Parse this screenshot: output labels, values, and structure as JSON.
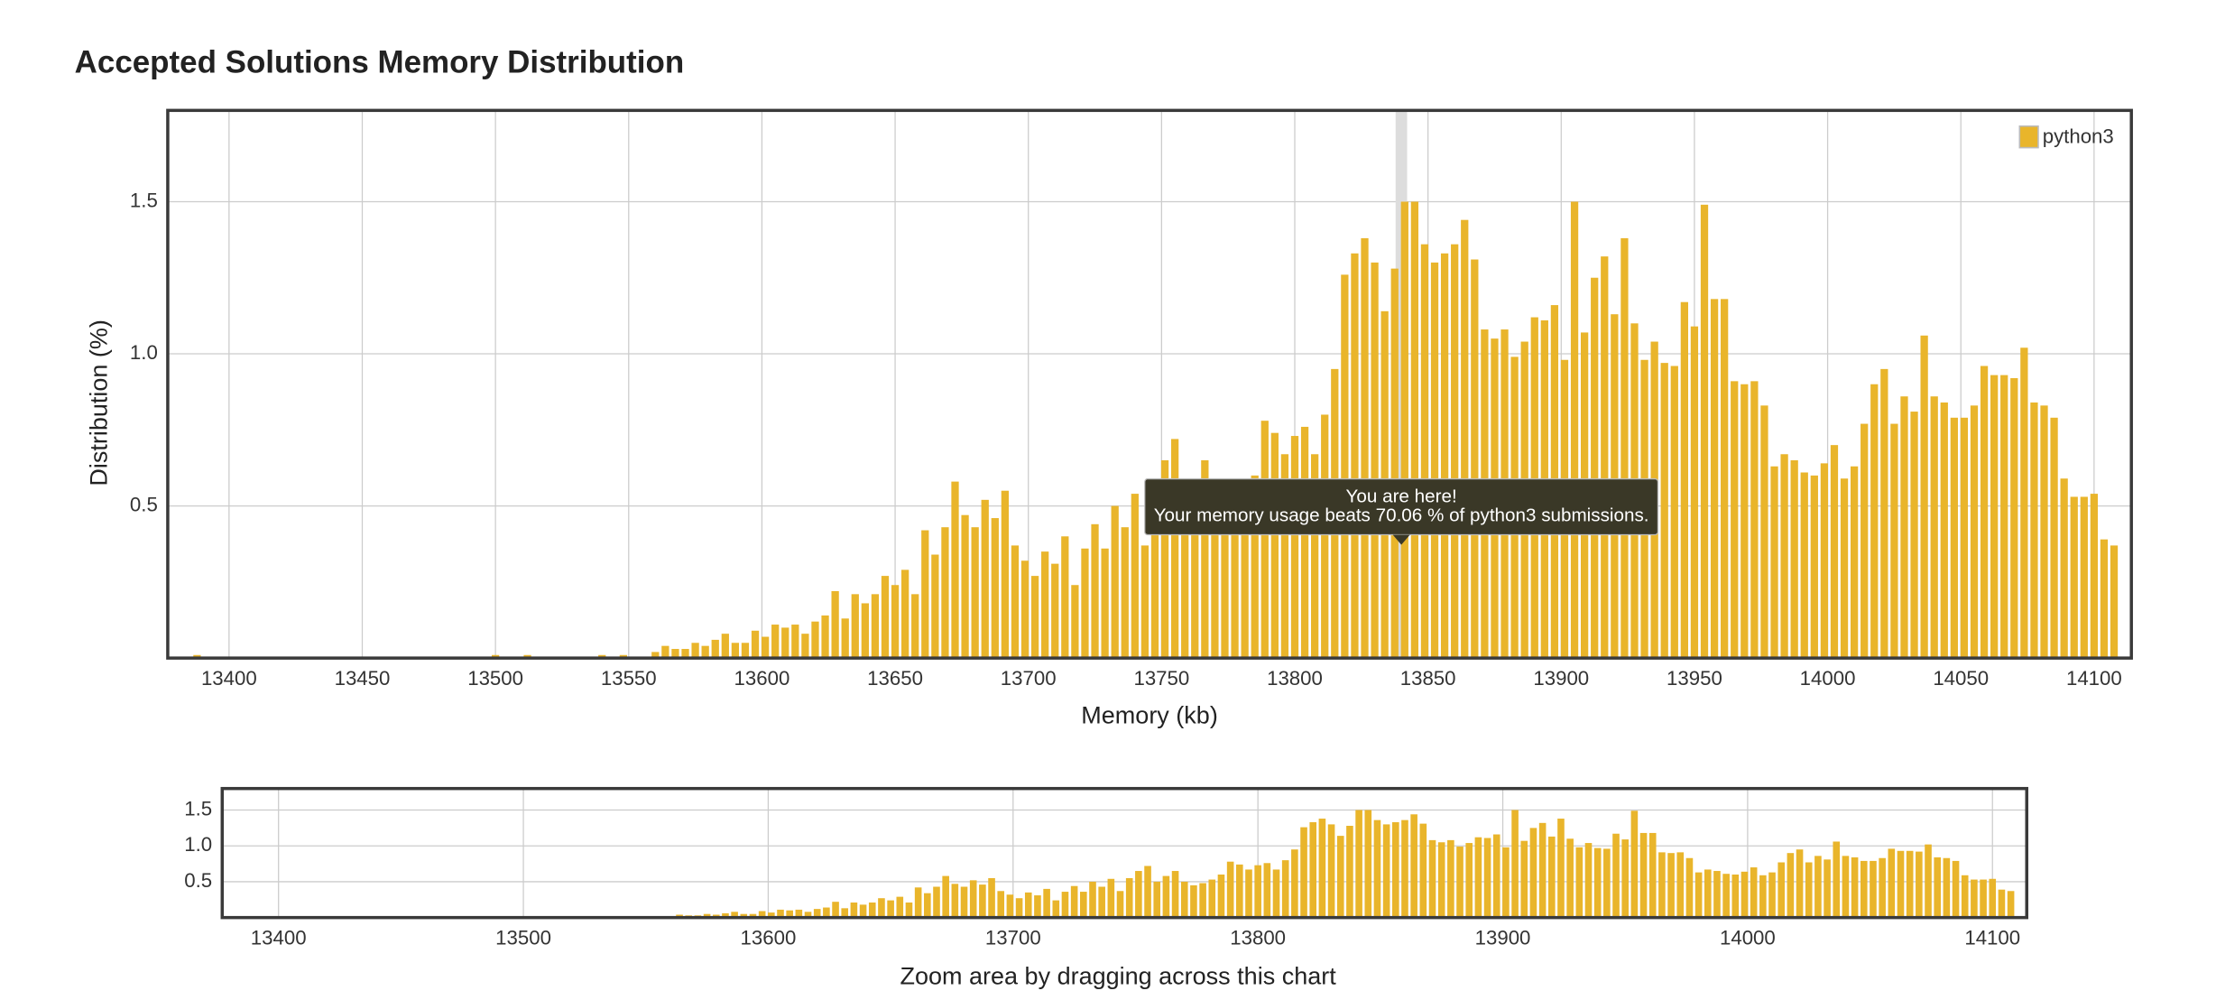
{
  "chart_data": [
    {
      "type": "bar",
      "title": "Accepted Solutions Memory Distribution",
      "xlabel": "Memory (kb)",
      "ylabel": "Distribution (%)",
      "legend": "top-right",
      "grid": true,
      "xlim": [
        13377,
        14114
      ],
      "ylim": [
        0,
        1.8
      ],
      "xticks": [
        13400,
        13450,
        13500,
        13550,
        13600,
        13650,
        13700,
        13750,
        13800,
        13850,
        13900,
        13950,
        14000,
        14050,
        14100
      ],
      "yticks": [
        0.5,
        {
          "value": 1,
          "label": "1.0"
        },
        1.5
      ],
      "highlight_x": 13840,
      "tooltip": {
        "title": "You are here!",
        "text": "Your memory usage beats 70.06 % of python3 submissions."
      },
      "x": [
        13388,
        13500,
        13512,
        13540,
        13548,
        13560,
        13563.75,
        13567.5,
        13571.25,
        13575,
        13578.75,
        13582.5,
        13586.25,
        13590,
        13593.75,
        13597.5,
        13601.25,
        13605,
        13608.75,
        13612.5,
        13616.25,
        13620,
        13623.75,
        13627.5,
        13631.25,
        13635,
        13638.75,
        13642.5,
        13646.25,
        13650,
        13653.75,
        13657.5,
        13661.25,
        13665,
        13668.75,
        13672.5,
        13676.25,
        13680,
        13683.75,
        13687.5,
        13691.25,
        13695,
        13698.75,
        13702.5,
        13706.25,
        13710,
        13713.75,
        13717.5,
        13721.25,
        13725,
        13728.75,
        13732.5,
        13736.25,
        13740,
        13743.75,
        13747.5,
        13751.25,
        13755,
        13758.75,
        13762.5,
        13766.25,
        13770,
        13773.75,
        13777.5,
        13781.25,
        13785,
        13788.75,
        13792.5,
        13796.25,
        13800,
        13803.75,
        13807.5,
        13811.25,
        13815,
        13818.75,
        13822.5,
        13826.25,
        13830,
        13833.75,
        13837.5,
        13841.25,
        13845,
        13848.75,
        13852.5,
        13856.25,
        13860,
        13863.75,
        13867.5,
        13871.25,
        13875,
        13878.75,
        13882.5,
        13886.25,
        13890,
        13893.75,
        13897.5,
        13901.25,
        13905,
        13908.75,
        13912.5,
        13916.25,
        13920,
        13923.75,
        13927.5,
        13931.25,
        13935,
        13938.75,
        13942.5,
        13946.25,
        13950,
        13953.75,
        13957.5,
        13961.25,
        13965,
        13968.75,
        13972.5,
        13976.25,
        13980,
        13983.75,
        13987.5,
        13991.25,
        13995,
        13998.75,
        14002.5,
        14006.25,
        14010,
        14013.75,
        14017.5,
        14021.25,
        14025,
        14028.75,
        14032.5,
        14036.25,
        14040,
        14043.75,
        14047.5,
        14051.25,
        14055,
        14058.75,
        14062.5,
        14066.25,
        14070,
        14073.75,
        14077.5,
        14081.25,
        14085,
        14088.75,
        14092.5,
        14096.25,
        14100,
        14103.75,
        14107.5
      ],
      "series": [
        {
          "name": "python3",
          "color": "#e9b52b",
          "values": [
            0.01,
            0.01,
            0.01,
            0.01,
            0.01,
            0.02,
            0.04,
            0.03,
            0.03,
            0.05,
            0.04,
            0.06,
            0.08,
            0.05,
            0.05,
            0.09,
            0.07,
            0.11,
            0.1,
            0.11,
            0.08,
            0.12,
            0.14,
            0.22,
            0.13,
            0.21,
            0.18,
            0.21,
            0.27,
            0.24,
            0.29,
            0.21,
            0.42,
            0.34,
            0.43,
            0.58,
            0.47,
            0.43,
            0.52,
            0.46,
            0.55,
            0.37,
            0.32,
            0.27,
            0.35,
            0.31,
            0.4,
            0.24,
            0.36,
            0.44,
            0.36,
            0.5,
            0.43,
            0.54,
            0.37,
            0.55,
            0.65,
            0.72,
            0.5,
            0.58,
            0.65,
            0.5,
            0.45,
            0.48,
            0.53,
            0.6,
            0.78,
            0.74,
            0.67,
            0.73,
            0.76,
            0.67,
            0.8,
            0.95,
            1.26,
            1.33,
            1.38,
            1.3,
            1.14,
            1.28,
            1.5,
            1.5,
            1.36,
            1.3,
            1.33,
            1.36,
            1.44,
            1.31,
            1.08,
            1.05,
            1.08,
            0.99,
            1.04,
            1.12,
            1.11,
            1.16,
            0.98,
            1.5,
            1.07,
            1.25,
            1.32,
            1.13,
            1.38,
            1.1,
            0.98,
            1.04,
            0.97,
            0.96,
            1.17,
            1.09,
            1.49,
            1.18,
            1.18,
            0.91,
            0.9,
            0.91,
            0.83,
            0.63,
            0.67,
            0.65,
            0.61,
            0.6,
            0.64,
            0.7,
            0.59,
            0.63,
            0.77,
            0.9,
            0.95,
            0.77,
            0.86,
            0.81,
            1.06,
            0.86,
            0.84,
            0.79,
            0.79,
            0.83,
            0.96,
            0.93,
            0.93,
            0.92,
            1.02,
            0.84,
            0.83,
            0.79,
            0.59,
            0.53,
            0.53,
            0.54,
            0.39,
            0.37
          ]
        }
      ]
    },
    {
      "type": "bar",
      "xlabel": "Zoom area by dragging across this chart",
      "grid": true,
      "xlim": [
        13377,
        14114
      ],
      "ylim": [
        0,
        1.8
      ],
      "xticks": [
        13400,
        13500,
        13600,
        13700,
        13800,
        13900,
        14000,
        14100
      ],
      "yticks": [
        0.5,
        {
          "value": 1,
          "label": "1.0"
        },
        1.5
      ]
    }
  ]
}
